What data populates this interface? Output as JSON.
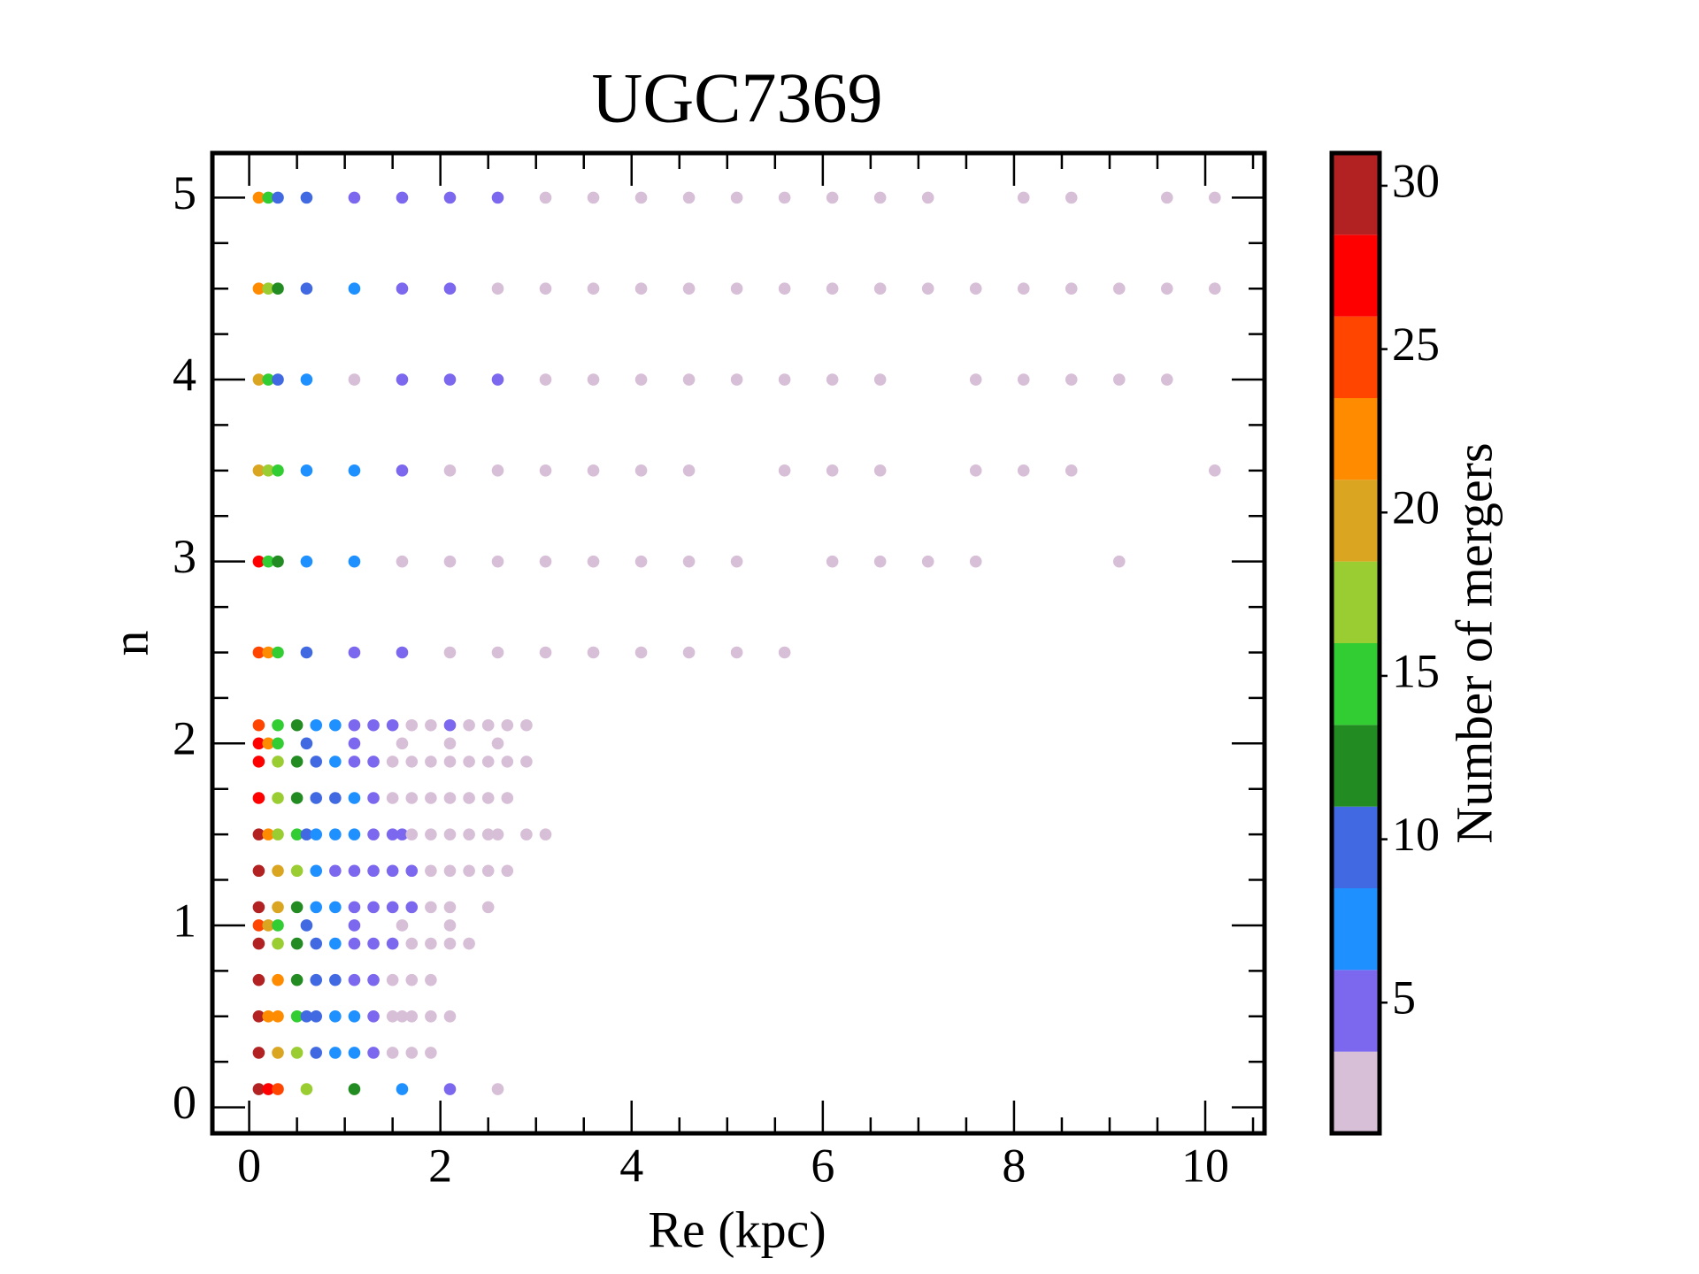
{
  "chart_data": {
    "type": "scatter",
    "title": "UGC7369",
    "xlabel": "Re (kpc)",
    "ylabel": "n",
    "xlim": [
      -0.385,
      10.62
    ],
    "ylim": [
      -0.143,
      5.245
    ],
    "xticks": [
      0,
      2,
      4,
      6,
      8,
      10
    ],
    "yticks": [
      0,
      1,
      2,
      3,
      4,
      5
    ],
    "colorbar": {
      "label": "Number of mergers",
      "lim": [
        1,
        31
      ],
      "bounds": [
        1,
        3.5,
        6,
        8.5,
        11,
        13.5,
        16,
        18.5,
        21,
        23.5,
        26,
        28.5,
        31
      ],
      "colors": [
        "#d8bfd8",
        "#7b68ee",
        "#1e90ff",
        "#4169e1",
        "#228b22",
        "#32cd32",
        "#9acd32",
        "#daa520",
        "#ff8c00",
        "#ff4500",
        "#ff0000",
        "#b22222"
      ],
      "ticks": [
        5,
        10,
        15,
        20,
        25,
        30
      ]
    },
    "points": [
      [
        0.1,
        5,
        22
      ],
      [
        0.2,
        5,
        15
      ],
      [
        0.3,
        5,
        10
      ],
      [
        0.6,
        5,
        10
      ],
      [
        1.1,
        5,
        5
      ],
      [
        1.6,
        5,
        5
      ],
      [
        2.1,
        5,
        5
      ],
      [
        2.6,
        5,
        5
      ],
      [
        3.1,
        5,
        2
      ],
      [
        3.6,
        5,
        2
      ],
      [
        4.1,
        5,
        2
      ],
      [
        4.6,
        5,
        2
      ],
      [
        5.1,
        5,
        2
      ],
      [
        5.6,
        5,
        2
      ],
      [
        6.1,
        5,
        2
      ],
      [
        6.6,
        5,
        2
      ],
      [
        7.1,
        5,
        2
      ],
      [
        8.1,
        5,
        2
      ],
      [
        8.6,
        5,
        2
      ],
      [
        9.6,
        5,
        2
      ],
      [
        10.1,
        5,
        2
      ],
      [
        0.1,
        4.5,
        22
      ],
      [
        0.2,
        4.5,
        17
      ],
      [
        0.3,
        4.5,
        12
      ],
      [
        0.6,
        4.5,
        10
      ],
      [
        1.1,
        4.5,
        7
      ],
      [
        1.6,
        4.5,
        5
      ],
      [
        2.1,
        4.5,
        5
      ],
      [
        2.6,
        4.5,
        2
      ],
      [
        3.1,
        4.5,
        2
      ],
      [
        3.6,
        4.5,
        2
      ],
      [
        4.1,
        4.5,
        2
      ],
      [
        4.6,
        4.5,
        2
      ],
      [
        5.1,
        4.5,
        2
      ],
      [
        5.6,
        4.5,
        2
      ],
      [
        6.1,
        4.5,
        2
      ],
      [
        6.6,
        4.5,
        2
      ],
      [
        7.1,
        4.5,
        2
      ],
      [
        7.6,
        4.5,
        2
      ],
      [
        8.1,
        4.5,
        2
      ],
      [
        8.6,
        4.5,
        2
      ],
      [
        9.1,
        4.5,
        2
      ],
      [
        9.6,
        4.5,
        2
      ],
      [
        10.1,
        4.5,
        2
      ],
      [
        0.1,
        4,
        20
      ],
      [
        0.2,
        4,
        15
      ],
      [
        0.3,
        4,
        10
      ],
      [
        0.6,
        4,
        7
      ],
      [
        1.1,
        4,
        2
      ],
      [
        1.6,
        4,
        5
      ],
      [
        2.1,
        4,
        5
      ],
      [
        2.6,
        4,
        5
      ],
      [
        3.1,
        4,
        2
      ],
      [
        3.6,
        4,
        2
      ],
      [
        4.1,
        4,
        2
      ],
      [
        4.6,
        4,
        2
      ],
      [
        5.1,
        4,
        2
      ],
      [
        5.6,
        4,
        2
      ],
      [
        6.1,
        4,
        2
      ],
      [
        6.6,
        4,
        2
      ],
      [
        7.6,
        4,
        2
      ],
      [
        8.1,
        4,
        2
      ],
      [
        8.6,
        4,
        2
      ],
      [
        9.1,
        4,
        2
      ],
      [
        9.6,
        4,
        2
      ],
      [
        0.1,
        3.5,
        20
      ],
      [
        0.2,
        3.5,
        17
      ],
      [
        0.3,
        3.5,
        15
      ],
      [
        0.6,
        3.5,
        7
      ],
      [
        1.1,
        3.5,
        7
      ],
      [
        1.6,
        3.5,
        5
      ],
      [
        2.1,
        3.5,
        2
      ],
      [
        2.6,
        3.5,
        2
      ],
      [
        3.1,
        3.5,
        2
      ],
      [
        3.6,
        3.5,
        2
      ],
      [
        4.1,
        3.5,
        2
      ],
      [
        4.6,
        3.5,
        2
      ],
      [
        5.6,
        3.5,
        2
      ],
      [
        6.1,
        3.5,
        2
      ],
      [
        6.6,
        3.5,
        2
      ],
      [
        7.6,
        3.5,
        2
      ],
      [
        8.1,
        3.5,
        2
      ],
      [
        8.6,
        3.5,
        2
      ],
      [
        10.1,
        3.5,
        2
      ],
      [
        0.1,
        3,
        27
      ],
      [
        0.2,
        3,
        15
      ],
      [
        0.3,
        3,
        12
      ],
      [
        0.6,
        3,
        7
      ],
      [
        1.1,
        3,
        7
      ],
      [
        1.6,
        3,
        2
      ],
      [
        2.1,
        3,
        2
      ],
      [
        2.6,
        3,
        2
      ],
      [
        3.1,
        3,
        2
      ],
      [
        3.6,
        3,
        2
      ],
      [
        4.1,
        3,
        2
      ],
      [
        4.6,
        3,
        2
      ],
      [
        5.1,
        3,
        2
      ],
      [
        6.1,
        3,
        2
      ],
      [
        6.6,
        3,
        2
      ],
      [
        7.1,
        3,
        2
      ],
      [
        7.6,
        3,
        2
      ],
      [
        9.1,
        3,
        2
      ],
      [
        0.1,
        2.5,
        25
      ],
      [
        0.2,
        2.5,
        22
      ],
      [
        0.3,
        2.5,
        15
      ],
      [
        0.6,
        2.5,
        10
      ],
      [
        1.1,
        2.5,
        5
      ],
      [
        1.6,
        2.5,
        5
      ],
      [
        2.1,
        2.5,
        2
      ],
      [
        2.6,
        2.5,
        2
      ],
      [
        3.1,
        2.5,
        2
      ],
      [
        3.6,
        2.5,
        2
      ],
      [
        4.1,
        2.5,
        2
      ],
      [
        4.6,
        2.5,
        2
      ],
      [
        5.1,
        2.5,
        2
      ],
      [
        5.6,
        2.5,
        2
      ],
      [
        0.1,
        2.1,
        25
      ],
      [
        0.3,
        2.1,
        15
      ],
      [
        0.5,
        2.1,
        12
      ],
      [
        0.7,
        2.1,
        7
      ],
      [
        0.9,
        2.1,
        7
      ],
      [
        1.1,
        2.1,
        5
      ],
      [
        1.3,
        2.1,
        5
      ],
      [
        1.5,
        2.1,
        5
      ],
      [
        1.7,
        2.1,
        2
      ],
      [
        1.9,
        2.1,
        2
      ],
      [
        2.1,
        2.1,
        5
      ],
      [
        2.3,
        2.1,
        2
      ],
      [
        2.5,
        2.1,
        2
      ],
      [
        2.7,
        2.1,
        2
      ],
      [
        2.9,
        2.1,
        2
      ],
      [
        0.1,
        2,
        27
      ],
      [
        0.2,
        2,
        22
      ],
      [
        0.3,
        2,
        15
      ],
      [
        0.6,
        2,
        10
      ],
      [
        1.1,
        2,
        5
      ],
      [
        1.6,
        2,
        2
      ],
      [
        2.1,
        2,
        2
      ],
      [
        2.6,
        2,
        2
      ],
      [
        0.1,
        1.9,
        27
      ],
      [
        0.3,
        1.9,
        17
      ],
      [
        0.5,
        1.9,
        12
      ],
      [
        0.7,
        1.9,
        10
      ],
      [
        0.9,
        1.9,
        7
      ],
      [
        1.1,
        1.9,
        5
      ],
      [
        1.3,
        1.9,
        5
      ],
      [
        1.5,
        1.9,
        2
      ],
      [
        1.7,
        1.9,
        2
      ],
      [
        1.9,
        1.9,
        2
      ],
      [
        2.1,
        1.9,
        2
      ],
      [
        2.3,
        1.9,
        2
      ],
      [
        2.5,
        1.9,
        2
      ],
      [
        2.7,
        1.9,
        2
      ],
      [
        2.9,
        1.9,
        2
      ],
      [
        0.1,
        1.7,
        27
      ],
      [
        0.3,
        1.7,
        17
      ],
      [
        0.5,
        1.7,
        12
      ],
      [
        0.7,
        1.7,
        10
      ],
      [
        0.9,
        1.7,
        10
      ],
      [
        1.1,
        1.7,
        7
      ],
      [
        1.3,
        1.7,
        5
      ],
      [
        1.5,
        1.7,
        2
      ],
      [
        1.7,
        1.7,
        2
      ],
      [
        1.9,
        1.7,
        2
      ],
      [
        2.1,
        1.7,
        2
      ],
      [
        2.3,
        1.7,
        2
      ],
      [
        2.5,
        1.7,
        2
      ],
      [
        2.7,
        1.7,
        2
      ],
      [
        0.1,
        1.5,
        30
      ],
      [
        0.2,
        1.5,
        22
      ],
      [
        0.3,
        1.5,
        17
      ],
      [
        0.5,
        1.5,
        15
      ],
      [
        0.6,
        1.5,
        10
      ],
      [
        0.7,
        1.5,
        7
      ],
      [
        0.9,
        1.5,
        7
      ],
      [
        1.1,
        1.5,
        7
      ],
      [
        1.3,
        1.5,
        5
      ],
      [
        1.5,
        1.5,
        5
      ],
      [
        1.6,
        1.5,
        5
      ],
      [
        1.7,
        1.5,
        2
      ],
      [
        1.9,
        1.5,
        2
      ],
      [
        2.1,
        1.5,
        2
      ],
      [
        2.3,
        1.5,
        2
      ],
      [
        2.5,
        1.5,
        2
      ],
      [
        2.6,
        1.5,
        2
      ],
      [
        2.9,
        1.5,
        2
      ],
      [
        3.1,
        1.5,
        2
      ],
      [
        0.1,
        1.3,
        30
      ],
      [
        0.3,
        1.3,
        20
      ],
      [
        0.5,
        1.3,
        17
      ],
      [
        0.7,
        1.3,
        7
      ],
      [
        0.9,
        1.3,
        5
      ],
      [
        1.1,
        1.3,
        5
      ],
      [
        1.3,
        1.3,
        5
      ],
      [
        1.5,
        1.3,
        5
      ],
      [
        1.7,
        1.3,
        5
      ],
      [
        1.9,
        1.3,
        2
      ],
      [
        2.1,
        1.3,
        2
      ],
      [
        2.3,
        1.3,
        2
      ],
      [
        2.5,
        1.3,
        2
      ],
      [
        2.7,
        1.3,
        2
      ],
      [
        0.1,
        1.1,
        30
      ],
      [
        0.3,
        1.1,
        20
      ],
      [
        0.5,
        1.1,
        12
      ],
      [
        0.7,
        1.1,
        7
      ],
      [
        0.9,
        1.1,
        7
      ],
      [
        1.1,
        1.1,
        5
      ],
      [
        1.3,
        1.1,
        5
      ],
      [
        1.5,
        1.1,
        5
      ],
      [
        1.7,
        1.1,
        5
      ],
      [
        1.9,
        1.1,
        2
      ],
      [
        2.1,
        1.1,
        2
      ],
      [
        2.5,
        1.1,
        2
      ],
      [
        0.1,
        1,
        25
      ],
      [
        0.2,
        1,
        20
      ],
      [
        0.3,
        1,
        15
      ],
      [
        0.6,
        1,
        10
      ],
      [
        1.1,
        1,
        5
      ],
      [
        1.6,
        1,
        2
      ],
      [
        2.1,
        1,
        2
      ],
      [
        0.1,
        0.9,
        30
      ],
      [
        0.3,
        0.9,
        17
      ],
      [
        0.5,
        0.9,
        12
      ],
      [
        0.7,
        0.9,
        10
      ],
      [
        0.9,
        0.9,
        7
      ],
      [
        1.1,
        0.9,
        5
      ],
      [
        1.3,
        0.9,
        5
      ],
      [
        1.5,
        0.9,
        5
      ],
      [
        1.7,
        0.9,
        2
      ],
      [
        1.9,
        0.9,
        2
      ],
      [
        2.1,
        0.9,
        2
      ],
      [
        2.3,
        0.9,
        2
      ],
      [
        0.1,
        0.7,
        30
      ],
      [
        0.3,
        0.7,
        22
      ],
      [
        0.5,
        0.7,
        12
      ],
      [
        0.7,
        0.7,
        10
      ],
      [
        0.9,
        0.7,
        10
      ],
      [
        1.1,
        0.7,
        5
      ],
      [
        1.3,
        0.7,
        5
      ],
      [
        1.5,
        0.7,
        2
      ],
      [
        1.7,
        0.7,
        2
      ],
      [
        1.9,
        0.7,
        2
      ],
      [
        0.1,
        0.5,
        30
      ],
      [
        0.2,
        0.5,
        22
      ],
      [
        0.3,
        0.5,
        22
      ],
      [
        0.5,
        0.5,
        15
      ],
      [
        0.6,
        0.5,
        10
      ],
      [
        0.7,
        0.5,
        10
      ],
      [
        0.9,
        0.5,
        7
      ],
      [
        1.1,
        0.5,
        7
      ],
      [
        1.3,
        0.5,
        5
      ],
      [
        1.5,
        0.5,
        2
      ],
      [
        1.6,
        0.5,
        2
      ],
      [
        1.7,
        0.5,
        2
      ],
      [
        1.9,
        0.5,
        2
      ],
      [
        2.1,
        0.5,
        2
      ],
      [
        0.1,
        0.3,
        30
      ],
      [
        0.3,
        0.3,
        20
      ],
      [
        0.5,
        0.3,
        17
      ],
      [
        0.7,
        0.3,
        10
      ],
      [
        0.9,
        0.3,
        7
      ],
      [
        1.1,
        0.3,
        7
      ],
      [
        1.3,
        0.3,
        5
      ],
      [
        1.5,
        0.3,
        2
      ],
      [
        1.7,
        0.3,
        2
      ],
      [
        1.9,
        0.3,
        2
      ],
      [
        0.1,
        0.1,
        30
      ],
      [
        0.2,
        0.1,
        27
      ],
      [
        0.3,
        0.1,
        25
      ],
      [
        0.6,
        0.1,
        17
      ],
      [
        1.1,
        0.1,
        12
      ],
      [
        1.6,
        0.1,
        7
      ],
      [
        2.1,
        0.1,
        5
      ],
      [
        2.6,
        0.1,
        2
      ]
    ]
  }
}
